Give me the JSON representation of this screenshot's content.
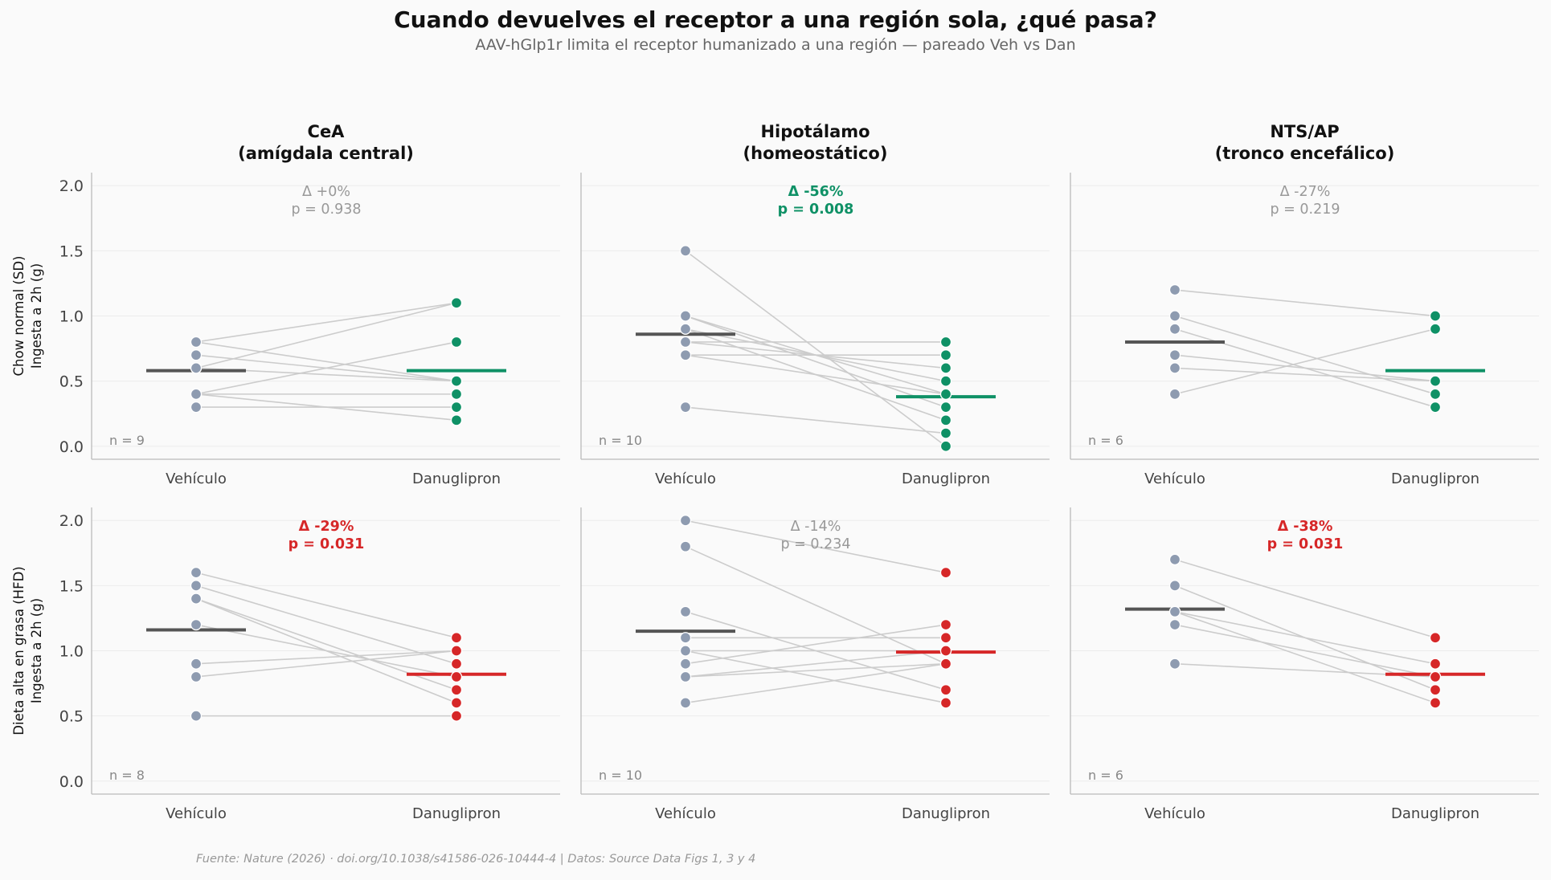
{
  "title": "Cuando devuelves el receptor a una región sola, ¿qué pasa?",
  "subtitle": "AAV-hGlp1r limita el receptor humanizado a una región — pareado Veh vs Dan",
  "source": "Fuente: Nature (2026) · doi.org/10.1038/s41586-026-10444-4 | Datos: Source Data Figs 1, 3 y 4",
  "colors": {
    "vehicle": "#8e9bb0",
    "mean_vehicle": "#555555",
    "dan_sd": "#0f9166",
    "dan_hfd": "#d62728",
    "nonsig": "#999999",
    "line": "#cccccc"
  },
  "chart_data": {
    "type": "scatter",
    "categories": [
      "Vehículo",
      "Danuglipron"
    ],
    "ylim": [
      -0.1,
      2.1
    ],
    "yticks": [
      "0.0",
      "0.5",
      "1.0",
      "1.5",
      "2.0"
    ],
    "columns": [
      "CeA\n(amígdala central)",
      "Hipotálamo\n(homeostático)",
      "NTS/AP\n(tronco encefálico)"
    ],
    "rows": [
      "Chow normal (SD)\nIngesta a 2h (g)",
      "Dieta alta en grasa (HFD)\nIngesta a 2h (g)"
    ],
    "panels": [
      {
        "row": 0,
        "col": 0,
        "n": "n = 9",
        "delta": "Δ +0%",
        "p": "p = 0.938",
        "significant": false,
        "color": "#0f9166",
        "mean_veh": 0.58,
        "mean_dan": 0.58,
        "pairs": [
          [
            0.8,
            1.1
          ],
          [
            0.8,
            0.5
          ],
          [
            0.7,
            0.5
          ],
          [
            0.6,
            1.1
          ],
          [
            0.6,
            0.5
          ],
          [
            0.4,
            0.8
          ],
          [
            0.4,
            0.4
          ],
          [
            0.4,
            0.2
          ],
          [
            0.3,
            0.3
          ]
        ]
      },
      {
        "row": 0,
        "col": 1,
        "n": "n = 10",
        "delta": "Δ -56%",
        "p": "p = 0.008",
        "significant": true,
        "color": "#0f9166",
        "mean_veh": 0.86,
        "mean_dan": 0.38,
        "pairs": [
          [
            1.5,
            0.0
          ],
          [
            1.0,
            0.4
          ],
          [
            1.0,
            0.3
          ],
          [
            0.9,
            0.5
          ],
          [
            0.9,
            0.2
          ],
          [
            0.8,
            0.8
          ],
          [
            0.8,
            0.6
          ],
          [
            0.7,
            0.7
          ],
          [
            0.7,
            0.4
          ],
          [
            0.3,
            0.1
          ]
        ]
      },
      {
        "row": 0,
        "col": 2,
        "n": "n = 6",
        "delta": "Δ -27%",
        "p": "p = 0.219",
        "significant": false,
        "color": "#0f9166",
        "mean_veh": 0.8,
        "mean_dan": 0.58,
        "pairs": [
          [
            1.2,
            1.0
          ],
          [
            1.0,
            0.4
          ],
          [
            0.9,
            0.3
          ],
          [
            0.7,
            0.5
          ],
          [
            0.6,
            0.5
          ],
          [
            0.4,
            0.9
          ]
        ]
      },
      {
        "row": 1,
        "col": 0,
        "n": "n = 8",
        "delta": "Δ -29%",
        "p": "p = 0.031",
        "significant": true,
        "color": "#d62728",
        "mean_veh": 1.16,
        "mean_dan": 0.82,
        "pairs": [
          [
            1.6,
            1.1
          ],
          [
            1.5,
            0.9
          ],
          [
            1.4,
            0.7
          ],
          [
            1.4,
            0.6
          ],
          [
            1.2,
            0.8
          ],
          [
            0.9,
            1.0
          ],
          [
            0.8,
            1.0
          ],
          [
            0.5,
            0.5
          ]
        ]
      },
      {
        "row": 1,
        "col": 1,
        "n": "n = 10",
        "delta": "Δ -14%",
        "p": "p = 0.234",
        "significant": false,
        "color": "#d62728",
        "mean_veh": 1.15,
        "mean_dan": 0.99,
        "pairs": [
          [
            2.0,
            1.6
          ],
          [
            1.8,
            0.9
          ],
          [
            1.3,
            0.7
          ],
          [
            1.1,
            1.1
          ],
          [
            1.0,
            1.0
          ],
          [
            1.0,
            0.6
          ],
          [
            0.9,
            1.2
          ],
          [
            0.8,
            0.9
          ],
          [
            0.8,
            1.0
          ],
          [
            0.6,
            0.9
          ]
        ]
      },
      {
        "row": 1,
        "col": 2,
        "n": "n = 6",
        "delta": "Δ -38%",
        "p": "p = 0.031",
        "significant": true,
        "color": "#d62728",
        "mean_veh": 1.32,
        "mean_dan": 0.82,
        "pairs": [
          [
            1.7,
            1.1
          ],
          [
            1.5,
            0.7
          ],
          [
            1.3,
            0.9
          ],
          [
            1.3,
            0.6
          ],
          [
            1.2,
            0.8
          ],
          [
            0.9,
            0.8
          ]
        ]
      }
    ]
  }
}
